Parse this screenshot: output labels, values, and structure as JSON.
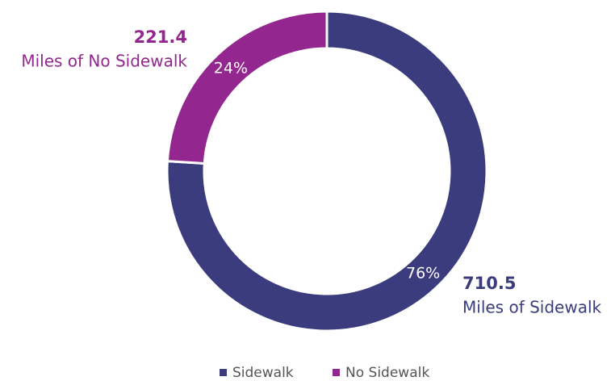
{
  "chart_data": {
    "type": "pie",
    "categories": [
      "Sidewalk",
      "No Sidewalk"
    ],
    "values": [
      76,
      24
    ],
    "value_labels": [
      "76%",
      "24%"
    ],
    "colors": [
      "#3b3c7e",
      "#93278f"
    ],
    "donut": true,
    "annotations": [
      {
        "amount": 710.5,
        "text": "Miles of Sidewalk"
      },
      {
        "amount": 221.4,
        "text": "Miles of No Sidewalk"
      }
    ],
    "legend": "bottom"
  }
}
